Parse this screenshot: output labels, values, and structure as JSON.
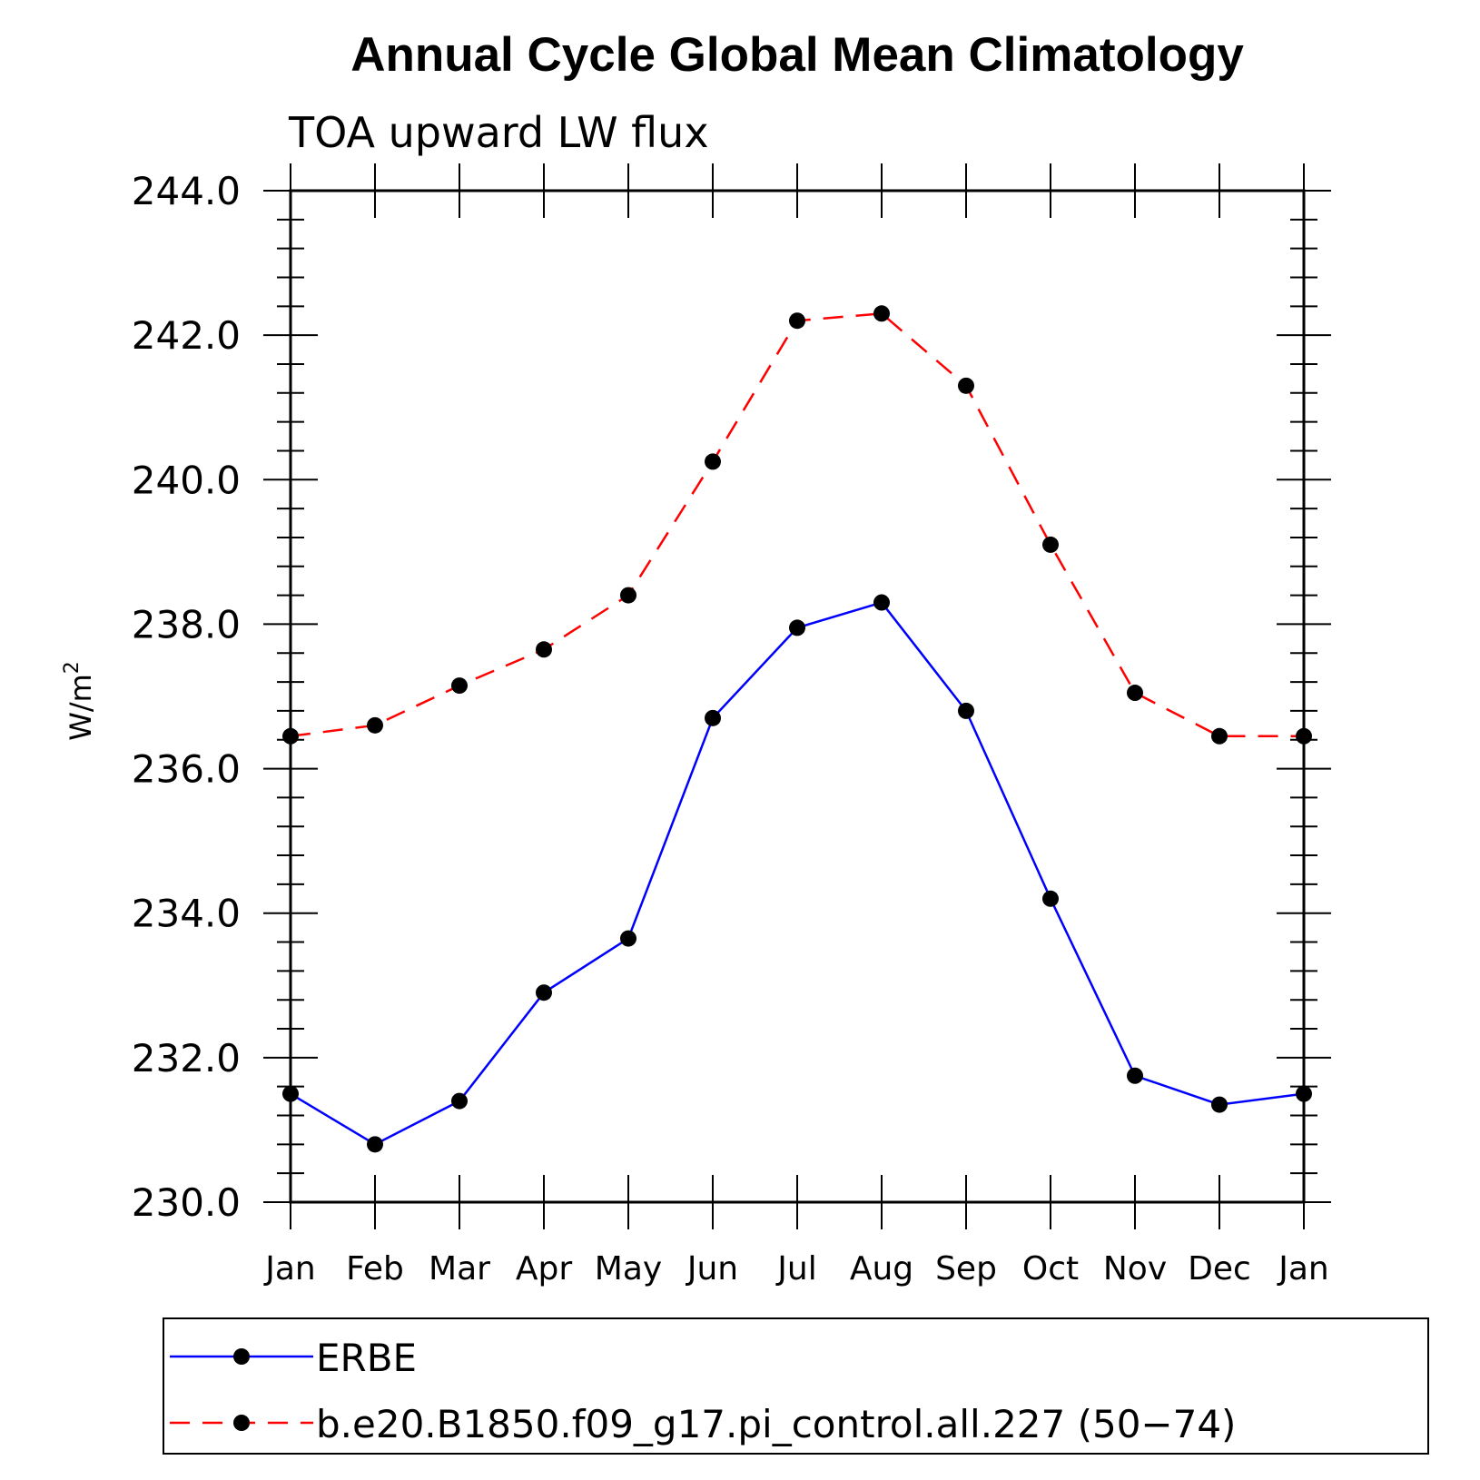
{
  "chart_data": {
    "type": "line",
    "title": "Annual Cycle Global Mean Climatology",
    "subtitle": "TOA upward LW flux",
    "xlabel": "",
    "ylabel": "W/m",
    "ylabel_superscript": "2",
    "categories": [
      "Jan",
      "Feb",
      "Mar",
      "Apr",
      "May",
      "Jun",
      "Jul",
      "Aug",
      "Sep",
      "Oct",
      "Nov",
      "Dec",
      "Jan"
    ],
    "ylim": [
      230.0,
      244.0
    ],
    "yticks": [
      "230.0",
      "232.0",
      "234.0",
      "236.0",
      "238.0",
      "240.0",
      "242.0",
      "244.0"
    ],
    "grid": false,
    "legend_position": "bottom",
    "series": [
      {
        "name": "ERBE",
        "color": "#0000ff",
        "dash": "solid",
        "values": [
          231.5,
          230.8,
          231.4,
          232.9,
          233.65,
          236.7,
          237.95,
          238.3,
          236.8,
          234.2,
          231.75,
          231.35,
          231.5
        ]
      },
      {
        "name": "b.e20.B1850.f09_g17.pi_control.all.227 (50−74)",
        "color": "#ff0000",
        "dash": "dashed",
        "values": [
          236.45,
          236.6,
          237.15,
          237.65,
          238.4,
          240.25,
          242.2,
          242.3,
          241.3,
          239.1,
          237.05,
          236.45,
          236.45
        ]
      }
    ]
  }
}
